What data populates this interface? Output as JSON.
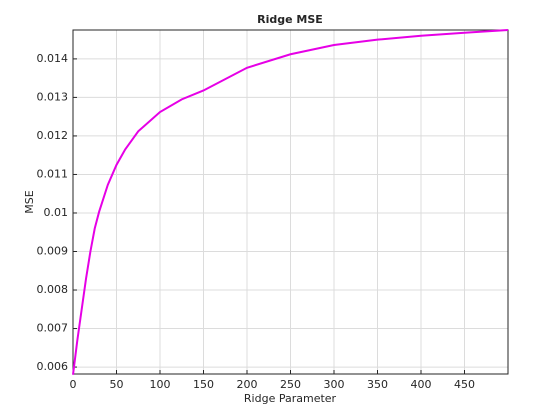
{
  "chart_data": {
    "type": "line",
    "title": "Ridge MSE",
    "xlabel": "Ridge Parameter",
    "ylabel": "MSE",
    "x": [
      0,
      5,
      10,
      15,
      20,
      25,
      30,
      40,
      50,
      60,
      75,
      100,
      125,
      150,
      200,
      250,
      300,
      350,
      400,
      450,
      500
    ],
    "series": [
      {
        "name": "MSE",
        "color": "#e600e6",
        "values": [
          0.0058,
          0.0067,
          0.0075,
          0.0083,
          0.009,
          0.0096,
          0.01003,
          0.01073,
          0.01125,
          0.01165,
          0.01212,
          0.01262,
          0.01295,
          0.01318,
          0.01377,
          0.01412,
          0.01436,
          0.0145,
          0.0146,
          0.01468,
          0.01475
        ]
      }
    ],
    "xlim": [
      0,
      500
    ],
    "xticks": [
      0,
      50,
      100,
      150,
      200,
      250,
      300,
      350,
      400,
      450
    ],
    "ylim": [
      0.00582,
      0.01475
    ],
    "yticks": [
      0.006,
      0.007,
      0.008,
      0.009,
      0.01,
      0.011,
      0.012,
      0.013,
      0.014
    ],
    "grid": true
  }
}
